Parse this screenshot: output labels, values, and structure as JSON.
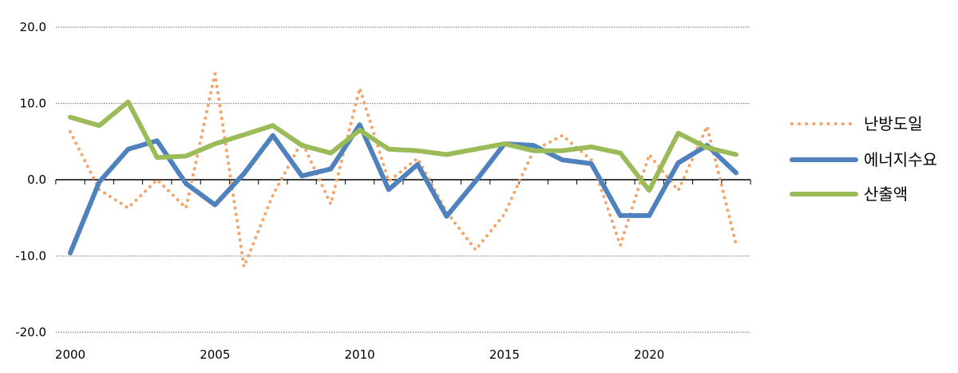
{
  "chart_data": {
    "type": "line",
    "x": [
      2000,
      2001,
      2002,
      2003,
      2004,
      2005,
      2006,
      2007,
      2008,
      2009,
      2010,
      2011,
      2012,
      2013,
      2014,
      2015,
      2016,
      2017,
      2018,
      2019,
      2020,
      2021,
      2022,
      2023
    ],
    "x_ticks": [
      "2000",
      "2005",
      "2010",
      "2015",
      "2020"
    ],
    "y_ticks": [
      "20.0",
      "10.0",
      "0.0",
      "-10.0",
      "-20.0"
    ],
    "ylim": [
      -20,
      20
    ],
    "grid": true,
    "legend_position": "right",
    "series": [
      {
        "name": "난방도일",
        "color": "#f4a46a",
        "style": "dotted",
        "values": [
          6.3,
          -1.3,
          -3.7,
          0.0,
          -3.7,
          13.9,
          -11.4,
          -2.0,
          5.0,
          -3.2,
          12.0,
          -0.2,
          2.8,
          -4.2,
          -9.2,
          -4.5,
          3.8,
          5.8,
          2.6,
          -8.6,
          3.3,
          -1.4,
          7.0,
          -8.5
        ]
      },
      {
        "name": "에너지수요",
        "color": "#4f81bd",
        "style": "solid",
        "values": [
          -9.6,
          -0.3,
          4.0,
          5.1,
          -0.5,
          -3.3,
          0.8,
          5.8,
          0.5,
          1.4,
          7.2,
          -1.3,
          2.0,
          -4.8,
          -0.2,
          4.7,
          4.5,
          2.6,
          2.1,
          -4.7,
          -4.7,
          2.2,
          4.5,
          0.9
        ]
      },
      {
        "name": "산출액",
        "color": "#9bbb59",
        "style": "solid",
        "values": [
          8.2,
          7.1,
          10.2,
          2.9,
          3.1,
          4.7,
          5.9,
          7.1,
          4.5,
          3.5,
          6.5,
          4.0,
          3.8,
          3.3,
          4.0,
          4.7,
          3.8,
          3.8,
          4.3,
          3.5,
          -1.4,
          6.1,
          4.2,
          3.3
        ]
      }
    ]
  }
}
